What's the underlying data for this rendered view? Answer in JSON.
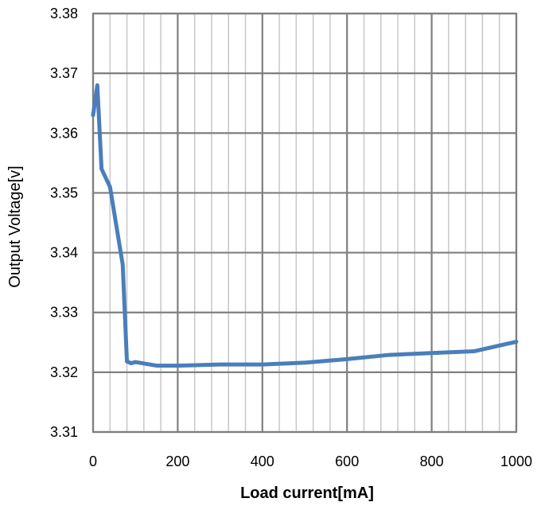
{
  "chart_data": {
    "type": "line",
    "title": "",
    "xlabel": "Load current[mA]",
    "ylabel": "Output  Voltage[v]",
    "xlim": [
      0,
      1000
    ],
    "ylim": [
      3.31,
      3.38
    ],
    "x_ticks": [
      0,
      200,
      400,
      600,
      800,
      1000
    ],
    "x_tick_labels": [
      "0",
      "200",
      "400",
      "600",
      "800",
      "1000"
    ],
    "x_minor_step": 40,
    "y_ticks": [
      3.31,
      3.32,
      3.33,
      3.34,
      3.35,
      3.36,
      3.37,
      3.38
    ],
    "y_tick_labels": [
      "3.31",
      "3.32",
      "3.33",
      "3.34",
      "3.35",
      "3.36",
      "3.37",
      "3.38"
    ],
    "grid": true,
    "legend": "none",
    "series": [
      {
        "color": "#4a7ebb",
        "x": [
          0,
          10,
          20,
          40,
          70,
          80,
          90,
          100,
          150,
          200,
          300,
          400,
          500,
          600,
          700,
          800,
          900,
          1000
        ],
        "y": [
          3.363,
          3.368,
          3.354,
          3.351,
          3.338,
          3.3218,
          3.3215,
          3.3217,
          3.3211,
          3.3211,
          3.3213,
          3.3213,
          3.3216,
          3.3222,
          3.3229,
          3.3232,
          3.3235,
          3.3251
        ]
      }
    ]
  }
}
